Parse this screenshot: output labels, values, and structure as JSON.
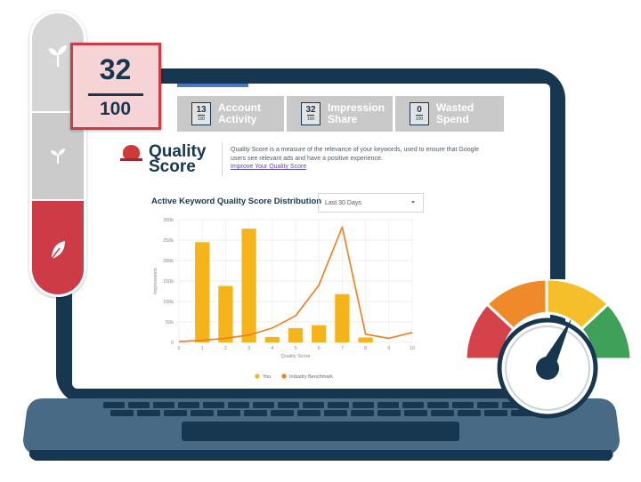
{
  "score_card": {
    "value": "32",
    "denominator": "100"
  },
  "tabs": [
    {
      "value": "13",
      "denominator": "100",
      "line1": "Account",
      "line2": "Activity"
    },
    {
      "value": "32",
      "denominator": "100",
      "line1": "Impression",
      "line2": "Share"
    },
    {
      "value": "0",
      "denominator": "100",
      "line1": "Wasted",
      "line2": "Spend"
    }
  ],
  "quality_score": {
    "title_line1": "Quality",
    "title_line2": "Score",
    "description": "Quality Score is a measure of the relevance of your keywords, used to ensure that Google users see relevant ads and have a positive experience.",
    "link": "Improve Your Quality Score"
  },
  "chart_header": {
    "title": "Active Keyword Quality Score Distribution",
    "date_range": "Last 30 Days"
  },
  "chart_data": {
    "type": "bar",
    "x": [
      0,
      1,
      2,
      3,
      4,
      5,
      6,
      7,
      8,
      9,
      10
    ],
    "xlabel": "Quality Score",
    "ylabel": "Impressions",
    "ylim": [
      0,
      300000
    ],
    "yticks": [
      "0",
      "50k",
      "100k",
      "150k",
      "200k",
      "250k",
      "300k"
    ],
    "series": [
      {
        "name": "You",
        "kind": "bar",
        "color": "#f4b41a",
        "values": [
          0,
          245000,
          138000,
          278000,
          13000,
          35000,
          42000,
          118000,
          12000,
          0,
          0
        ]
      },
      {
        "name": "Industry Benchmark",
        "kind": "line",
        "color": "#ef7d1a",
        "values": [
          2000,
          5000,
          10000,
          18000,
          35000,
          65000,
          140000,
          282000,
          20000,
          10000,
          24000
        ]
      }
    ],
    "grid": true,
    "legend": "bottom"
  },
  "colors": {
    "navy": "#173650",
    "red": "#cc3b46",
    "bar": "#f4b41a",
    "line": "#ef7d1a",
    "gauge": [
      "#d6424a",
      "#ef8a2b",
      "#f4bf2a",
      "#3fa05a"
    ]
  },
  "icons": {
    "pill_top": "plant-sprout-icon",
    "pill_mid": "plant-sprout-icon",
    "pill_bottom": "leaf-icon",
    "gauge": "speedometer-gauge-icon"
  }
}
